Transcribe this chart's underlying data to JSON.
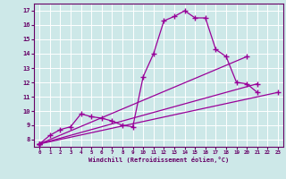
{
  "xlabel": "Windchill (Refroidissement éolien,°C)",
  "bg_color": "#cde8e8",
  "grid_color": "#ffffff",
  "line_color": "#990099",
  "xlim": [
    -0.5,
    23.5
  ],
  "ylim": [
    7.5,
    17.5
  ],
  "xticks": [
    0,
    1,
    2,
    3,
    4,
    5,
    6,
    7,
    8,
    9,
    10,
    11,
    12,
    13,
    14,
    15,
    16,
    17,
    18,
    19,
    20,
    21,
    22,
    23
  ],
  "yticks": [
    8,
    9,
    10,
    11,
    12,
    13,
    14,
    15,
    16,
    17
  ],
  "series1_x": [
    0,
    1,
    2,
    3,
    4,
    5,
    6,
    7,
    8,
    9,
    10,
    11,
    12,
    13,
    14,
    15,
    16,
    17,
    18,
    19,
    20,
    21
  ],
  "series1_y": [
    7.7,
    8.3,
    8.7,
    8.9,
    9.8,
    9.6,
    9.5,
    9.3,
    9.0,
    8.9,
    12.4,
    14.0,
    16.3,
    16.6,
    17.0,
    16.5,
    16.5,
    14.3,
    13.8,
    12.0,
    11.9,
    11.3
  ],
  "series2_x": [
    0,
    23
  ],
  "series2_y": [
    7.7,
    11.3
  ],
  "series3_x": [
    0,
    21
  ],
  "series3_y": [
    7.7,
    11.9
  ],
  "series4_x": [
    0,
    20
  ],
  "series4_y": [
    7.7,
    13.8
  ]
}
